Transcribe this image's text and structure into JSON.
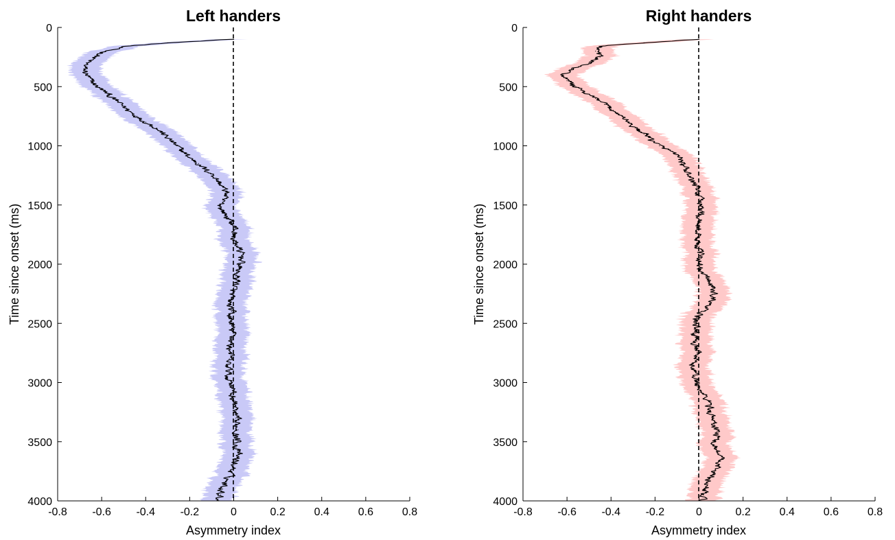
{
  "chart_data": [
    {
      "type": "line",
      "title": "Left handers",
      "xlabel": "Asymmetry index",
      "ylabel": "Time since onset (ms)",
      "xlim": [
        -0.8,
        0.8
      ],
      "ylim": [
        0,
        4000
      ],
      "y_reversed": true,
      "xticks": [
        "-0.8",
        "-0.6",
        "-0.4",
        "-0.2",
        "0",
        "0.2",
        "0.4",
        "0.6",
        "0.8"
      ],
      "yticks": [
        "0",
        "500",
        "1000",
        "1500",
        "2000",
        "2500",
        "3000",
        "3500",
        "4000"
      ],
      "reference_line": {
        "x": 0,
        "style": "dashed",
        "color": "#000000"
      },
      "series_color": "#000000",
      "band_color": "#c9c9f7",
      "band_halfwidth": 0.07,
      "series": [
        {
          "time": [
            100,
            130,
            160,
            200,
            250,
            300,
            350,
            400,
            450,
            500,
            550,
            600,
            650,
            700,
            750,
            800,
            850,
            900,
            950,
            1000,
            1050,
            1100,
            1150,
            1200,
            1250,
            1300,
            1350,
            1400,
            1450,
            1500,
            1550,
            1600,
            1650,
            1700,
            1750,
            1800,
            1850,
            1900,
            1950,
            2000,
            2050,
            2100,
            2150,
            2200,
            2250,
            2300,
            2350,
            2400,
            2450,
            2500,
            2550,
            2600,
            2650,
            2700,
            2750,
            2800,
            2850,
            2900,
            2950,
            3000,
            3050,
            3100,
            3150,
            3200,
            3250,
            3300,
            3350,
            3400,
            3450,
            3500,
            3550,
            3600,
            3650,
            3700,
            3750,
            3800,
            3850,
            3900,
            3950,
            4000
          ],
          "value": [
            0.0,
            -0.3,
            -0.5,
            -0.58,
            -0.63,
            -0.67,
            -0.68,
            -0.67,
            -0.65,
            -0.62,
            -0.58,
            -0.55,
            -0.51,
            -0.48,
            -0.44,
            -0.4,
            -0.35,
            -0.32,
            -0.29,
            -0.26,
            -0.23,
            -0.2,
            -0.16,
            -0.13,
            -0.09,
            -0.07,
            -0.05,
            -0.03,
            -0.05,
            -0.06,
            -0.05,
            -0.03,
            -0.01,
            0.01,
            0.0,
            0.0,
            0.02,
            0.03,
            0.04,
            0.03,
            0.02,
            0.01,
            0.02,
            0.0,
            -0.01,
            -0.02,
            -0.02,
            -0.01,
            -0.02,
            -0.01,
            -0.01,
            0.0,
            -0.01,
            -0.02,
            -0.01,
            -0.02,
            -0.03,
            -0.02,
            -0.03,
            -0.01,
            0.0,
            -0.01,
            0.0,
            0.01,
            0.0,
            0.01,
            0.01,
            0.02,
            0.01,
            0.02,
            0.01,
            0.02,
            0.01,
            0.0,
            -0.01,
            -0.02,
            -0.04,
            -0.05,
            -0.06,
            -0.07
          ]
        }
      ]
    },
    {
      "type": "line",
      "title": "Right handers",
      "xlabel": "Asymmetry index",
      "ylabel": "Time since onset (ms)",
      "xlim": [
        -0.8,
        0.8
      ],
      "ylim": [
        0,
        4000
      ],
      "y_reversed": true,
      "xticks": [
        "-0.8",
        "-0.6",
        "-0.4",
        "-0.2",
        "0",
        "0.2",
        "0.4",
        "0.6",
        "0.8"
      ],
      "yticks": [
        "0",
        "500",
        "1000",
        "1500",
        "2000",
        "2500",
        "3000",
        "3500",
        "4000"
      ],
      "reference_line": {
        "x": 0,
        "style": "dashed",
        "color": "#000000"
      },
      "series_color": "#000000",
      "band_color": "#ffc9c9",
      "band_halfwidth": 0.07,
      "series": [
        {
          "time": [
            100,
            130,
            160,
            200,
            250,
            300,
            350,
            400,
            450,
            500,
            550,
            600,
            650,
            700,
            750,
            800,
            850,
            900,
            950,
            1000,
            1050,
            1100,
            1150,
            1200,
            1250,
            1300,
            1350,
            1400,
            1450,
            1500,
            1550,
            1600,
            1650,
            1700,
            1750,
            1800,
            1850,
            1900,
            1950,
            2000,
            2050,
            2100,
            2150,
            2200,
            2250,
            2300,
            2350,
            2400,
            2450,
            2500,
            2550,
            2600,
            2650,
            2700,
            2750,
            2800,
            2850,
            2900,
            2950,
            3000,
            3050,
            3100,
            3150,
            3200,
            3250,
            3300,
            3350,
            3400,
            3450,
            3500,
            3550,
            3600,
            3650,
            3700,
            3750,
            3800,
            3850,
            3900,
            3950,
            4000
          ],
          "value": [
            0.0,
            -0.25,
            -0.45,
            -0.47,
            -0.45,
            -0.5,
            -0.58,
            -0.62,
            -0.6,
            -0.56,
            -0.52,
            -0.47,
            -0.43,
            -0.39,
            -0.35,
            -0.32,
            -0.29,
            -0.25,
            -0.22,
            -0.18,
            -0.12,
            -0.08,
            -0.08,
            -0.06,
            -0.05,
            -0.03,
            -0.01,
            0.0,
            0.0,
            0.01,
            0.01,
            0.0,
            0.0,
            -0.01,
            0.0,
            -0.01,
            0.0,
            0.0,
            0.01,
            0.0,
            0.0,
            0.03,
            0.05,
            0.06,
            0.07,
            0.06,
            0.04,
            0.01,
            -0.01,
            -0.02,
            -0.01,
            -0.02,
            -0.01,
            -0.02,
            -0.01,
            -0.02,
            -0.03,
            -0.02,
            -0.02,
            -0.01,
            0.0,
            0.02,
            0.04,
            0.05,
            0.05,
            0.06,
            0.07,
            0.08,
            0.08,
            0.07,
            0.08,
            0.09,
            0.1,
            0.09,
            0.07,
            0.05,
            0.04,
            0.03,
            0.02,
            0.01
          ]
        }
      ]
    }
  ]
}
